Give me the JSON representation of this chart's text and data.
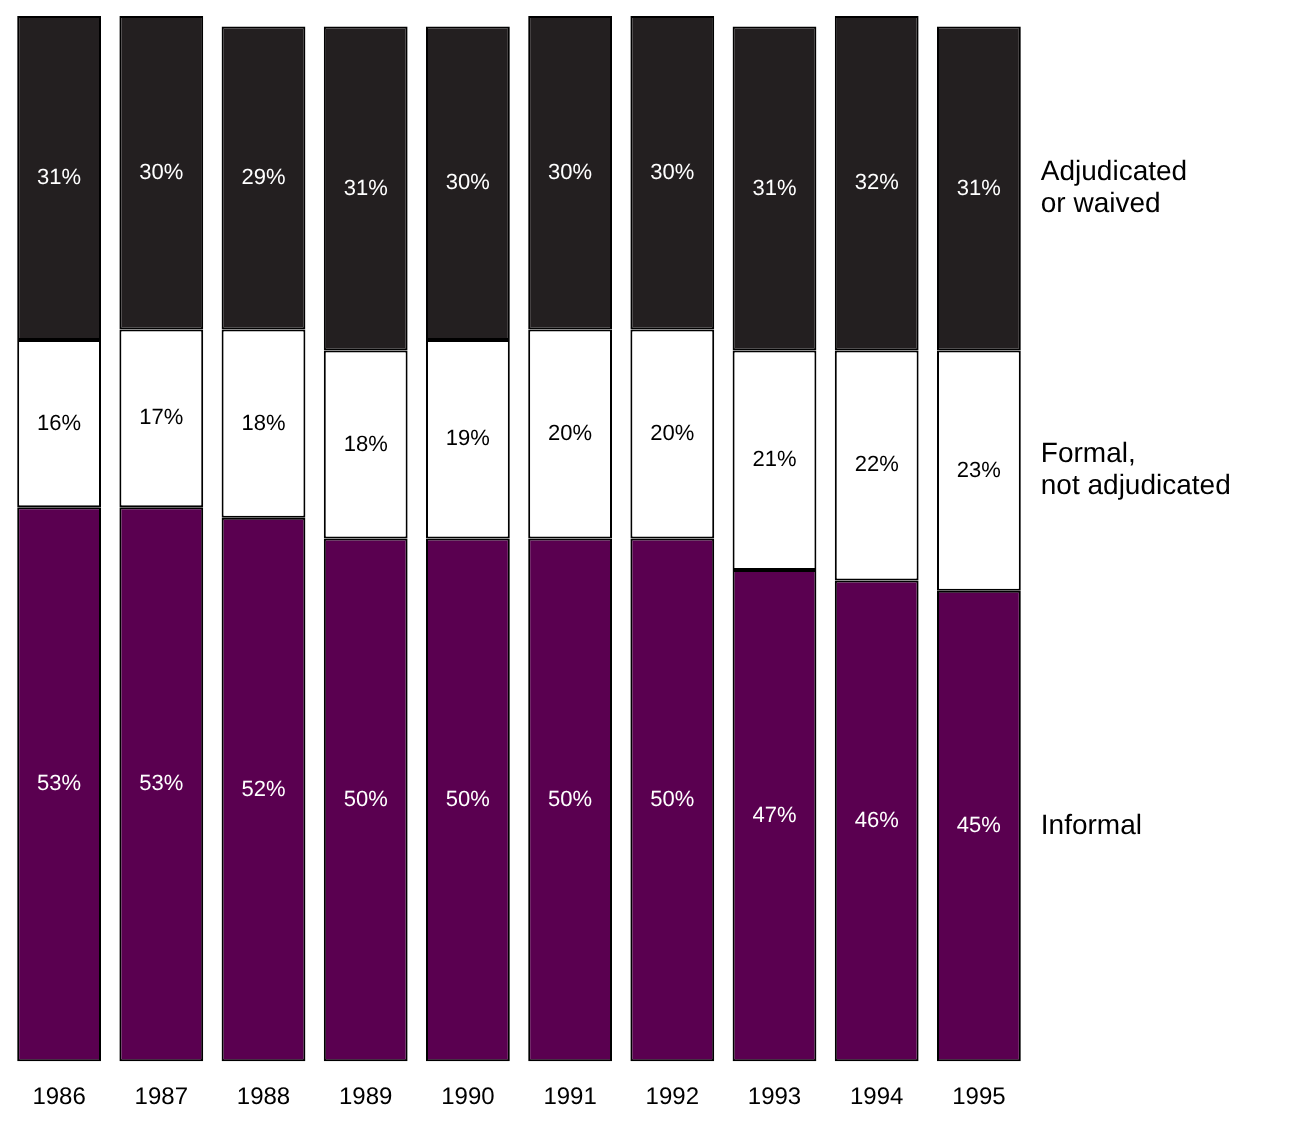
{
  "chart_data": {
    "type": "bar",
    "stacked": true,
    "categories": [
      "1986",
      "1987",
      "1988",
      "1989",
      "1990",
      "1991",
      "1992",
      "1993",
      "1994",
      "1995"
    ],
    "series": [
      {
        "name": "Informal",
        "color": "#5a0050",
        "values": [
          53,
          53,
          52,
          50,
          50,
          50,
          50,
          47,
          46,
          45
        ],
        "value_labels": [
          "53%",
          "53%",
          "52%",
          "50%",
          "50%",
          "50%",
          "50%",
          "47%",
          "46%",
          "45%"
        ]
      },
      {
        "name": "Formal,\nnot adjudicated",
        "color": "#ffffff",
        "values": [
          16,
          17,
          18,
          18,
          19,
          20,
          20,
          21,
          22,
          23
        ],
        "value_labels": [
          "16%",
          "17%",
          "18%",
          "18%",
          "19%",
          "20%",
          "20%",
          "21%",
          "22%",
          "23%"
        ]
      },
      {
        "name": "Adjudicated\nor waived",
        "color": "#231f20",
        "values": [
          31,
          30,
          29,
          31,
          30,
          30,
          30,
          31,
          32,
          31
        ],
        "value_labels": [
          "31%",
          "30%",
          "29%",
          "31%",
          "30%",
          "30%",
          "30%",
          "31%",
          "32%",
          "31%"
        ]
      }
    ]
  }
}
